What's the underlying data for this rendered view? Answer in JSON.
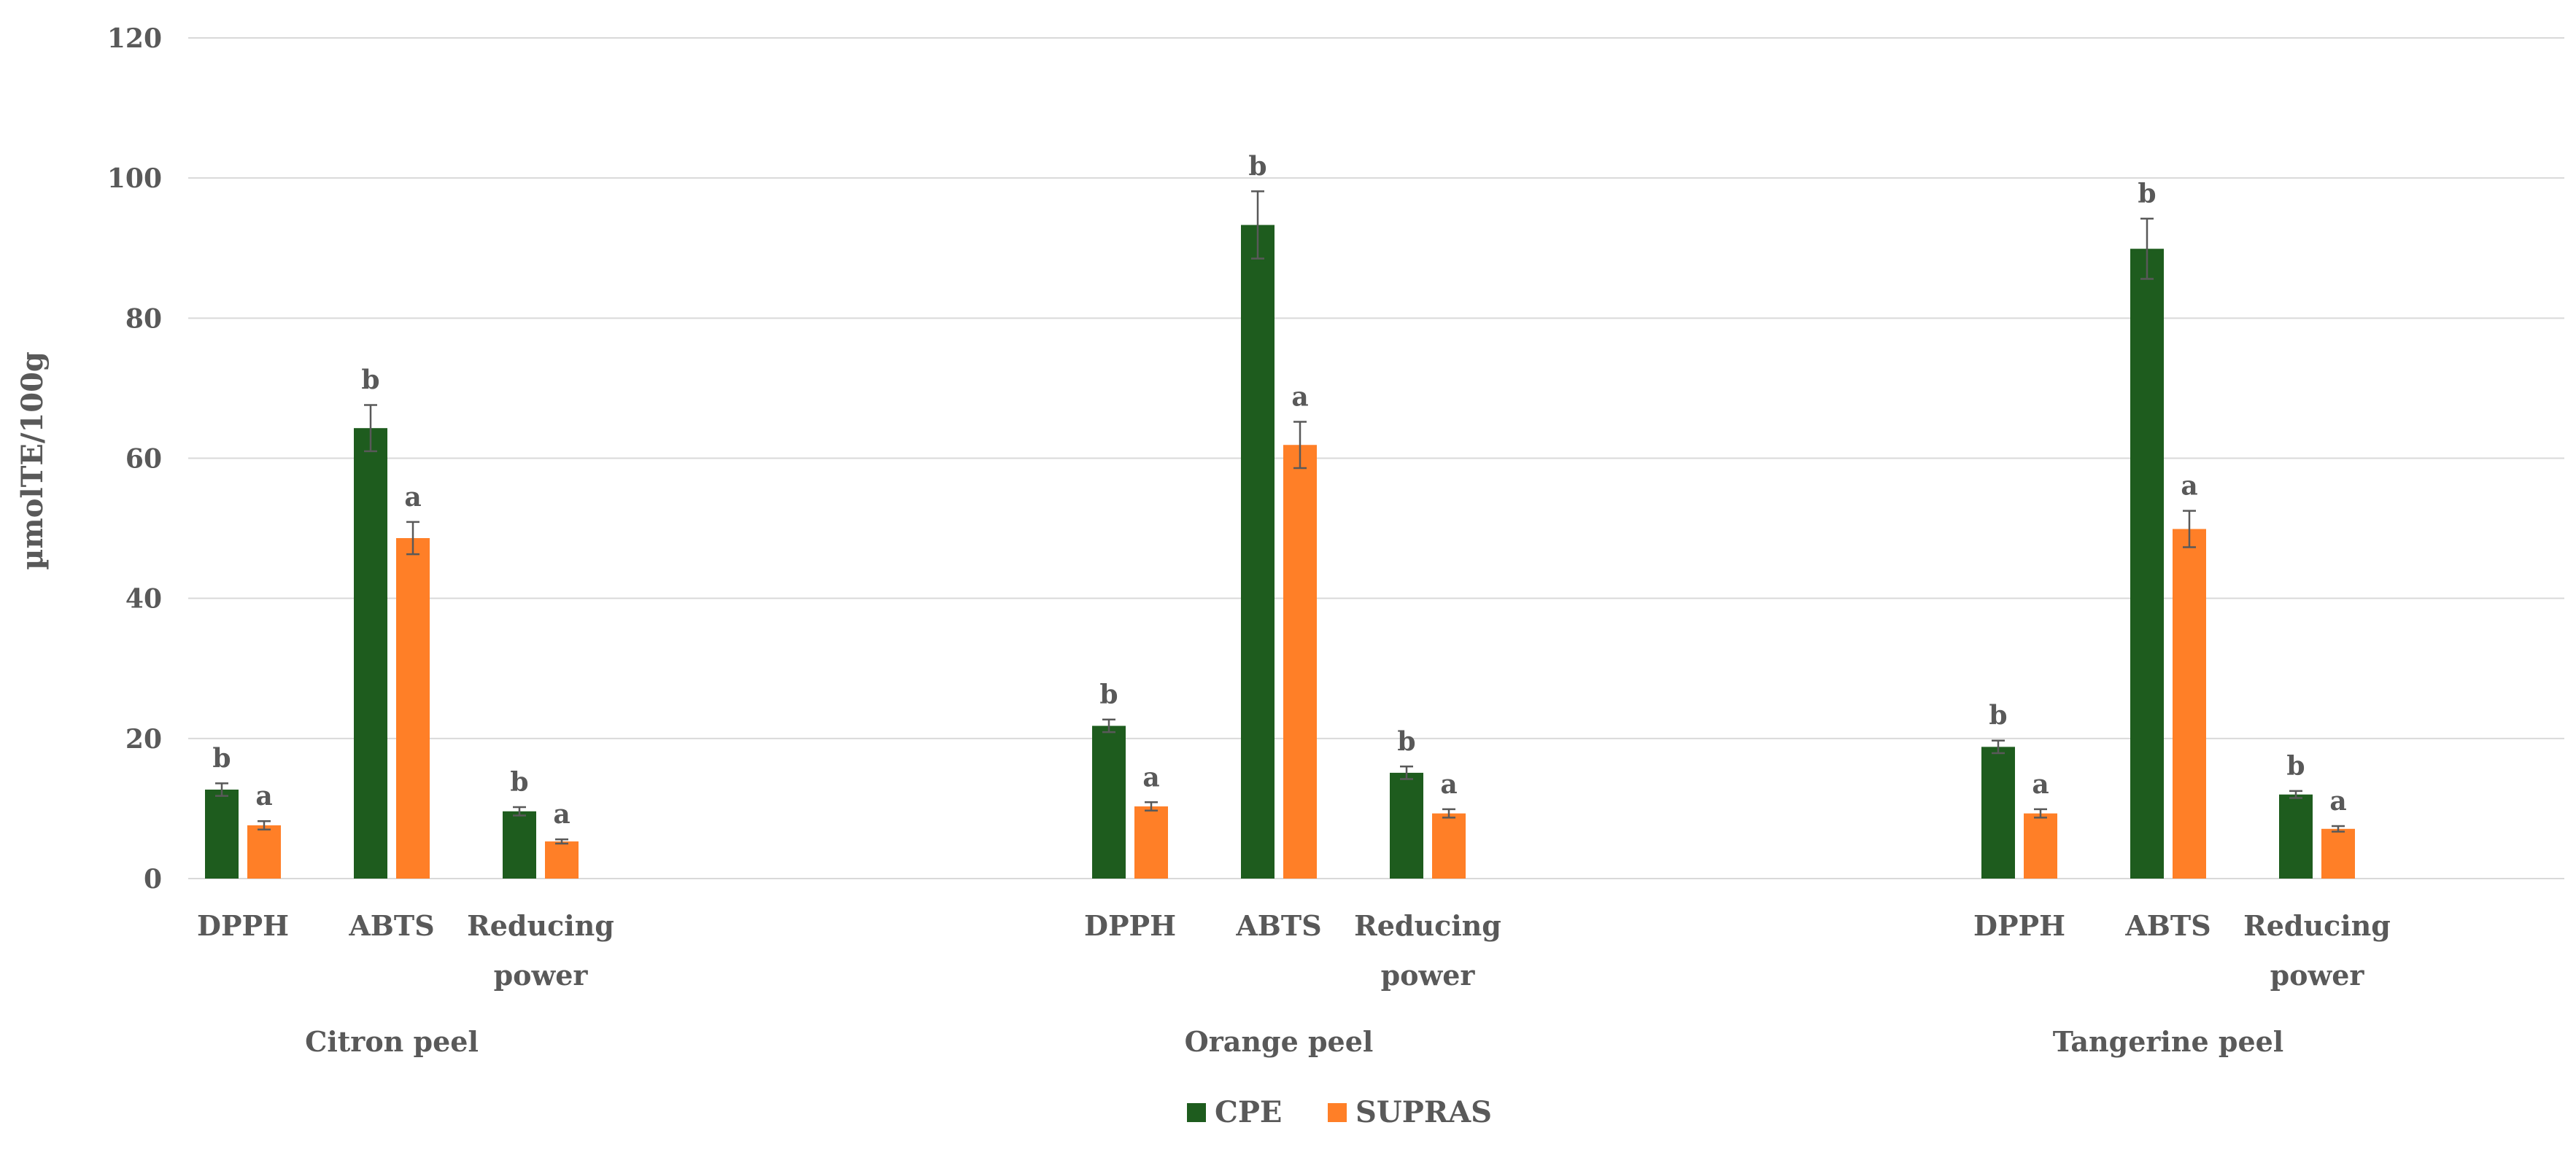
{
  "chart_data": {
    "type": "bar",
    "title": "",
    "ylabel": "µmolTE/100g",
    "xlabel": "",
    "ylim": [
      0,
      120
    ],
    "yticks": [
      0,
      20,
      40,
      60,
      80,
      100,
      120
    ],
    "grid": true,
    "legend_position": "bottom",
    "groups": [
      {
        "name": "Citron peel",
        "categories": [
          {
            "label_lines": [
              "DPPH"
            ],
            "values": [
              12.7,
              7.6
            ],
            "errors": [
              0.9,
              0.6
            ],
            "sig": [
              "b",
              "a"
            ]
          },
          {
            "label_lines": [
              "ABTS"
            ],
            "values": [
              64.3,
              48.6
            ],
            "errors": [
              3.3,
              2.3
            ],
            "sig": [
              "b",
              "a"
            ]
          },
          {
            "label_lines": [
              "Reducing",
              "power"
            ],
            "values": [
              9.6,
              5.3
            ],
            "errors": [
              0.6,
              0.3
            ],
            "sig": [
              "b",
              "a"
            ]
          }
        ]
      },
      {
        "name": "Orange peel",
        "categories": [
          {
            "label_lines": [
              "DPPH"
            ],
            "values": [
              21.8,
              10.3
            ],
            "errors": [
              0.9,
              0.6
            ],
            "sig": [
              "b",
              "a"
            ]
          },
          {
            "label_lines": [
              "ABTS"
            ],
            "values": [
              93.3,
              61.9
            ],
            "errors": [
              4.8,
              3.3
            ],
            "sig": [
              "b",
              "a"
            ]
          },
          {
            "label_lines": [
              "Reducing",
              "power"
            ],
            "values": [
              15.1,
              9.3
            ],
            "errors": [
              0.9,
              0.6
            ],
            "sig": [
              "b",
              "a"
            ]
          }
        ]
      },
      {
        "name": "Tangerine peel",
        "categories": [
          {
            "label_lines": [
              "DPPH"
            ],
            "values": [
              18.8,
              9.3
            ],
            "errors": [
              0.9,
              0.6
            ],
            "sig": [
              "b",
              "a"
            ]
          },
          {
            "label_lines": [
              "ABTS"
            ],
            "values": [
              89.9,
              49.9
            ],
            "errors": [
              4.3,
              2.6
            ],
            "sig": [
              "b",
              "a"
            ]
          },
          {
            "label_lines": [
              "Reducing",
              "power"
            ],
            "values": [
              12.0,
              7.1
            ],
            "errors": [
              0.5,
              0.4
            ],
            "sig": [
              "b",
              "a"
            ]
          }
        ]
      }
    ],
    "series": [
      {
        "name": "CPE",
        "color": "#1e5c1e"
      },
      {
        "name": "SUPRAS",
        "color": "#ff7f27"
      }
    ]
  }
}
